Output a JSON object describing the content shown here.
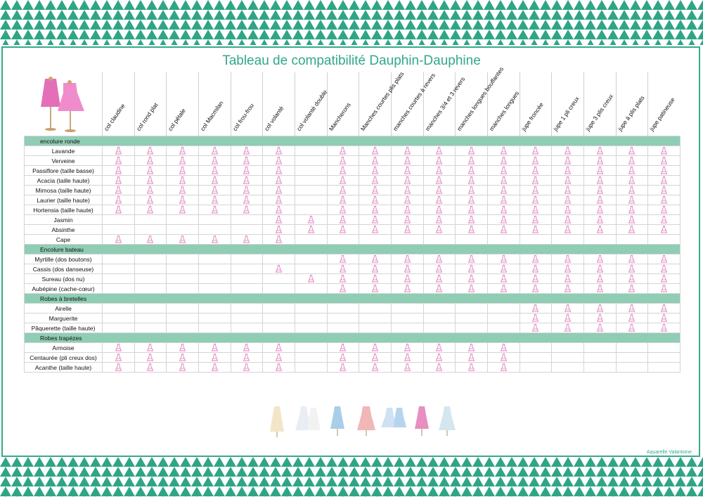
{
  "title": "Tableau de compatibilité Dauphin-Dauphine",
  "footer_credit": "Aquarelle Valantoine",
  "colors": {
    "accent": "#32a888",
    "section_band": "#8fcdb4",
    "mark": "#e79ac9"
  },
  "columns": [
    "col claudine",
    "col rond plat",
    "col pétale",
    "col Macmilan",
    "col frou-frou",
    "col volanté",
    "col volanté double",
    "Mancherons",
    "Manches courtes plis plats",
    "manches courtes à revers",
    "manches 3/4 et 3 revers",
    "manches longues bouffantes",
    "manches longues",
    "jupe froncée",
    "jupe 1 pli creux",
    "jupe 3 plis creux",
    "jupe à plis plats",
    "jupe patineuse"
  ],
  "mark_icon": "dress-mark-icon",
  "sections": [
    {
      "label": "encolure ronde",
      "rows": [
        {
          "label": "Lavande",
          "marks": [
            1,
            1,
            1,
            1,
            1,
            1,
            0,
            1,
            1,
            1,
            1,
            1,
            1,
            1,
            1,
            1,
            1,
            1
          ]
        },
        {
          "label": "Verveine",
          "marks": [
            1,
            1,
            1,
            1,
            1,
            1,
            0,
            1,
            1,
            1,
            1,
            1,
            1,
            1,
            1,
            1,
            1,
            1
          ]
        },
        {
          "label": "Passiflore (taille basse)",
          "marks": [
            1,
            1,
            1,
            1,
            1,
            1,
            0,
            1,
            1,
            1,
            1,
            1,
            1,
            1,
            1,
            1,
            1,
            1
          ]
        },
        {
          "label": "Acacia (taille haute)",
          "marks": [
            1,
            1,
            1,
            1,
            1,
            1,
            0,
            1,
            1,
            1,
            1,
            1,
            1,
            1,
            1,
            1,
            1,
            1
          ]
        },
        {
          "label": "Mimosa (taille haute)",
          "marks": [
            1,
            1,
            1,
            1,
            1,
            1,
            0,
            1,
            1,
            1,
            1,
            1,
            1,
            1,
            1,
            1,
            1,
            1
          ]
        },
        {
          "label": "Laurier (taille haute)",
          "marks": [
            1,
            1,
            1,
            1,
            1,
            1,
            0,
            1,
            1,
            1,
            1,
            1,
            1,
            1,
            1,
            1,
            1,
            1
          ]
        },
        {
          "label": "Hortensia (taille haute)",
          "marks": [
            1,
            1,
            1,
            1,
            1,
            1,
            0,
            1,
            1,
            1,
            1,
            1,
            1,
            1,
            1,
            1,
            1,
            1
          ]
        },
        {
          "label": "Jasmin",
          "marks": [
            0,
            0,
            0,
            0,
            0,
            1,
            1,
            1,
            1,
            1,
            1,
            1,
            1,
            1,
            1,
            1,
            1,
            1
          ]
        },
        {
          "label": "Absinthe",
          "marks": [
            0,
            0,
            0,
            0,
            0,
            1,
            1,
            1,
            1,
            1,
            1,
            1,
            1,
            1,
            1,
            1,
            1,
            1
          ]
        },
        {
          "label": "Cape",
          "marks": [
            1,
            1,
            1,
            1,
            1,
            1,
            0,
            0,
            0,
            0,
            0,
            0,
            0,
            0,
            0,
            0,
            0,
            0
          ]
        }
      ]
    },
    {
      "label": "Encolure bateau",
      "rows": [
        {
          "label": "Myrtille (dos boutons)",
          "marks": [
            0,
            0,
            0,
            0,
            0,
            0,
            0,
            1,
            1,
            1,
            1,
            1,
            1,
            1,
            1,
            1,
            1,
            1
          ]
        },
        {
          "label": "Cassis (dos danseuse)",
          "marks": [
            0,
            0,
            0,
            0,
            0,
            1,
            0,
            1,
            1,
            1,
            1,
            1,
            1,
            1,
            1,
            1,
            1,
            1
          ]
        },
        {
          "label": "Sureau (dos nu)",
          "marks": [
            0,
            0,
            0,
            0,
            0,
            0,
            1,
            1,
            1,
            1,
            1,
            1,
            1,
            1,
            1,
            1,
            1,
            1
          ]
        },
        {
          "label": "Aubépine (cache-cœur)",
          "marks": [
            0,
            0,
            0,
            0,
            0,
            0,
            0,
            1,
            1,
            1,
            1,
            1,
            1,
            1,
            1,
            1,
            1,
            1
          ]
        }
      ]
    },
    {
      "label": "Robes à bretelles",
      "rows": [
        {
          "label": "Airelle",
          "marks": [
            0,
            0,
            0,
            0,
            0,
            0,
            0,
            0,
            0,
            0,
            0,
            0,
            0,
            1,
            1,
            1,
            1,
            1
          ]
        },
        {
          "label": "Marguerite",
          "marks": [
            0,
            0,
            0,
            0,
            0,
            0,
            0,
            0,
            0,
            0,
            0,
            0,
            0,
            1,
            1,
            1,
            1,
            1
          ]
        },
        {
          "label": "Pâquerette (taille haute)",
          "marks": [
            0,
            0,
            0,
            0,
            0,
            0,
            0,
            0,
            0,
            0,
            0,
            0,
            0,
            1,
            1,
            1,
            1,
            1
          ]
        }
      ]
    },
    {
      "label": "Robes trapèzes",
      "rows": [
        {
          "label": "Armoise",
          "marks": [
            1,
            1,
            1,
            1,
            1,
            1,
            0,
            1,
            1,
            1,
            1,
            1,
            1,
            0,
            0,
            0,
            0,
            0
          ]
        },
        {
          "label": "Centaurée (pli creux dos)",
          "marks": [
            1,
            1,
            1,
            1,
            1,
            1,
            0,
            1,
            1,
            1,
            1,
            1,
            1,
            0,
            0,
            0,
            0,
            0
          ]
        },
        {
          "label": "Acanthe (taille haute)",
          "marks": [
            1,
            1,
            1,
            1,
            1,
            1,
            0,
            1,
            1,
            1,
            1,
            1,
            1,
            0,
            0,
            0,
            0,
            0
          ]
        }
      ]
    }
  ]
}
